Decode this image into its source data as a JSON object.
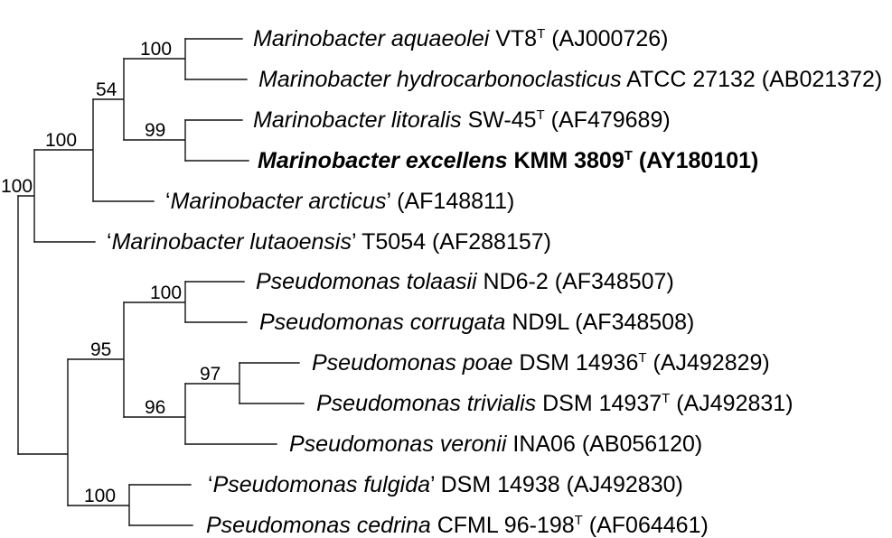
{
  "leaves": [
    {
      "name": "Marinobacter aquaeolei",
      "strain": "VT8",
      "type_mark": "T",
      "accession": "(AJ000726)"
    },
    {
      "name": "Marinobacter hydrocarbonoclasticus",
      "strain": "ATCC 27132",
      "accession": "(AB021372)"
    },
    {
      "name": "Marinobacter litoralis",
      "strain": "SW-45",
      "type_mark": "T",
      "accession": "(AF479689)"
    },
    {
      "name": "Marinobacter excellens",
      "strain": "KMM 3809",
      "type_mark": "T",
      "accession": "(AY180101)"
    },
    {
      "quote_open": "‘",
      "name": "Marinobacter arcticus",
      "quote_close": "’",
      "accession": "(AF148811)"
    },
    {
      "quote_open": "‘",
      "name": "Marinobacter lutaoensis",
      "quote_close": "’",
      "strain": "T5054",
      "accession": "(AF288157)"
    },
    {
      "name": "Pseudomonas tolaasii",
      "strain": "ND6-2",
      "accession": "(AF348507)"
    },
    {
      "name": "Pseudomonas corrugata",
      "strain": "ND9L",
      "accession": "(AF348508)"
    },
    {
      "name": "Pseudomonas poae",
      "strain": "DSM 14936",
      "type_mark": "T",
      "accession": "(AJ492829)"
    },
    {
      "name": "Pseudomonas trivialis",
      "strain": "DSM 14937",
      "type_mark": "T",
      "accession": "(AJ492831)"
    },
    {
      "name": "Pseudomonas veronii",
      "strain": "INA06",
      "accession": "(AB056120)"
    },
    {
      "quote_open": "‘",
      "name": "Pseudomonas fulgida",
      "quote_close": "’",
      "strain": "DSM 14938",
      "accession": "(AJ492830)"
    },
    {
      "name": "Pseudomonas cedrina",
      "strain": "CFML 96-198",
      "type_mark": "T",
      "accession": "(AF064461)"
    }
  ],
  "bootstrap_values": [
    "100",
    "54",
    "99",
    "100",
    "100",
    "100",
    "95",
    "97",
    "96",
    "100"
  ]
}
